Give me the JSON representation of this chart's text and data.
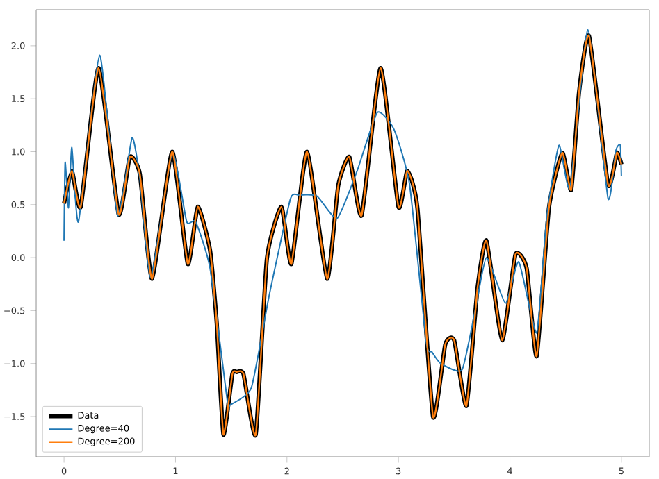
{
  "chart_data": {
    "type": "line",
    "xlim": [
      -0.25,
      5.25
    ],
    "ylim": [
      -1.88,
      2.34
    ],
    "xticks": [
      0,
      1,
      2,
      3,
      4,
      5
    ],
    "yticks": [
      {
        "value": -1.5,
        "label": "−1.5"
      },
      {
        "value": -1.0,
        "label": "−1.0"
      },
      {
        "value": -0.5,
        "label": "−0.5"
      },
      {
        "value": 0.0,
        "label": "0.0"
      },
      {
        "value": 0.5,
        "label": "0.5"
      },
      {
        "value": 1.0,
        "label": "1.0"
      },
      {
        "value": 1.5,
        "label": "1.5"
      },
      {
        "value": 2.0,
        "label": "2.0"
      }
    ],
    "legend": "bottom left",
    "series": [
      {
        "name": "Data",
        "color": "#000000",
        "x": [
          0,
          0.07,
          0.15,
          0.31,
          0.49,
          0.59,
          0.68,
          0.79,
          0.97,
          1.11,
          1.2,
          1.31,
          1.37,
          1.43,
          1.51,
          1.55,
          1.61,
          1.72,
          1.82,
          1.95,
          2.04,
          2.18,
          2.36,
          2.46,
          2.56,
          2.67,
          2.84,
          3.0,
          3.08,
          3.17,
          3.31,
          3.42,
          3.5,
          3.61,
          3.71,
          3.79,
          3.93,
          4.05,
          4.15,
          4.24,
          4.35,
          4.47,
          4.55,
          4.62,
          4.71,
          4.88,
          4.96,
          5.0
        ],
        "values": [
          0.51,
          0.82,
          0.48,
          1.79,
          0.41,
          0.95,
          0.79,
          -0.2,
          1.0,
          -0.06,
          0.48,
          0.07,
          -0.62,
          -1.67,
          -1.1,
          -1.08,
          -1.1,
          -1.67,
          -0.01,
          0.48,
          -0.06,
          1.0,
          -0.2,
          0.68,
          0.95,
          0.4,
          1.79,
          0.48,
          0.82,
          0.47,
          -1.5,
          -0.82,
          -0.78,
          -1.4,
          -0.28,
          0.16,
          -0.78,
          0.03,
          -0.1,
          -0.93,
          0.47,
          0.99,
          0.64,
          1.56,
          2.09,
          0.69,
          0.99,
          0.88
        ]
      },
      {
        "name": "Degree=40",
        "color": "#1f77b4",
        "x": [
          0,
          0.01,
          0.04,
          0.07,
          0.13,
          0.32,
          0.48,
          0.61,
          0.68,
          0.78,
          0.97,
          1.1,
          1.18,
          1.31,
          1.47,
          1.49,
          1.68,
          1.84,
          2.03,
          2.11,
          2.27,
          2.45,
          2.63,
          2.81,
          2.96,
          3.1,
          3.25,
          3.3,
          3.38,
          3.57,
          3.69,
          3.79,
          3.96,
          4.08,
          4.24,
          4.33,
          4.44,
          4.54,
          4.7,
          4.88,
          4.95,
          4.99,
          5.0
        ],
        "values": [
          0.16,
          0.9,
          0.47,
          1.04,
          0.34,
          1.91,
          0.4,
          1.13,
          0.75,
          -0.19,
          0.99,
          0.34,
          0.34,
          -0.1,
          -1.39,
          -1.39,
          -1.23,
          -0.36,
          0.55,
          0.59,
          0.58,
          0.37,
          0.82,
          1.37,
          1.21,
          0.69,
          -0.8,
          -0.89,
          -1.0,
          -1.06,
          -0.49,
          0.0,
          -0.43,
          -0.04,
          -0.71,
          0.38,
          1.06,
          0.66,
          2.15,
          0.56,
          1.01,
          1.06,
          0.77
        ]
      },
      {
        "name": "Degree=200",
        "color": "#ff7f0e",
        "x": [
          0,
          0.07,
          0.15,
          0.31,
          0.49,
          0.59,
          0.68,
          0.79,
          0.97,
          1.11,
          1.2,
          1.31,
          1.37,
          1.43,
          1.51,
          1.55,
          1.61,
          1.72,
          1.82,
          1.95,
          2.04,
          2.18,
          2.36,
          2.46,
          2.56,
          2.67,
          2.84,
          3.0,
          3.08,
          3.17,
          3.31,
          3.42,
          3.5,
          3.61,
          3.71,
          3.79,
          3.93,
          4.05,
          4.15,
          4.24,
          4.35,
          4.47,
          4.55,
          4.62,
          4.71,
          4.88,
          4.96,
          5.0
        ],
        "values": [
          0.51,
          0.82,
          0.48,
          1.79,
          0.41,
          0.95,
          0.79,
          -0.2,
          1.0,
          -0.06,
          0.48,
          0.07,
          -0.62,
          -1.67,
          -1.1,
          -1.08,
          -1.1,
          -1.67,
          -0.01,
          0.48,
          -0.06,
          1.0,
          -0.2,
          0.68,
          0.95,
          0.4,
          1.79,
          0.48,
          0.82,
          0.47,
          -1.5,
          -0.82,
          -0.78,
          -1.4,
          -0.28,
          0.16,
          -0.78,
          0.03,
          -0.1,
          -0.93,
          0.47,
          0.99,
          0.64,
          1.56,
          2.09,
          0.69,
          0.99,
          0.88
        ]
      }
    ]
  }
}
